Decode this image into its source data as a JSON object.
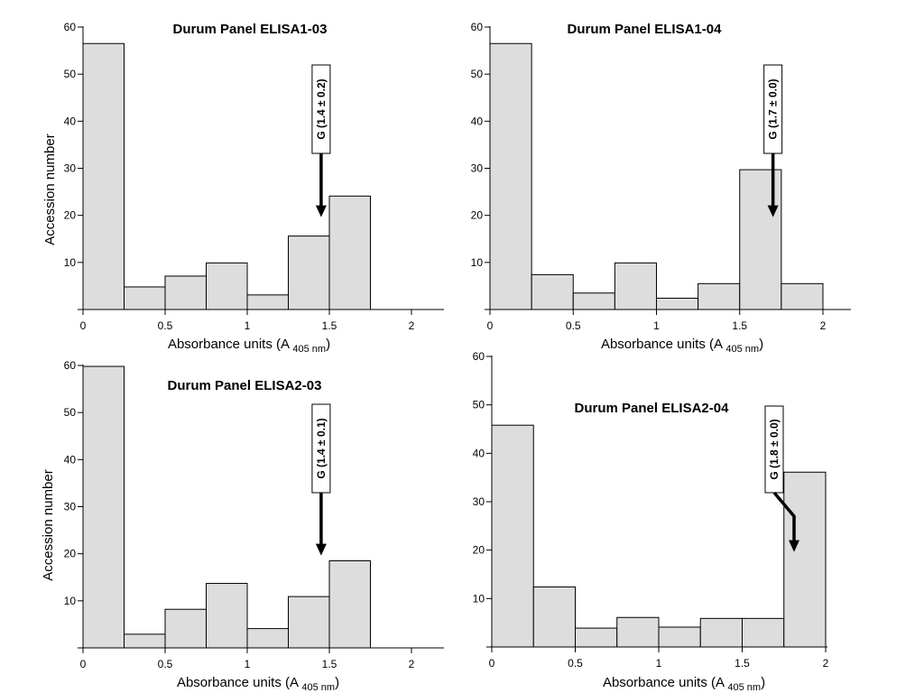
{
  "chart_data": [
    {
      "type": "bar",
      "title": "Durum Panel ELISA1-03",
      "xlabel": "Absorbance units (A",
      "xlabel_sub": "405 nm",
      "xlabel_close": ")",
      "ylabel": "Accession number",
      "bin_edges": [
        0,
        0.25,
        0.5,
        0.75,
        1,
        1.25,
        1.5,
        1.75
      ],
      "values": [
        56.5,
        4.8,
        7.1,
        9.9,
        3.1,
        15.6,
        24.1
      ],
      "xlim": [
        0,
        2.2
      ],
      "ylim": [
        0,
        60
      ],
      "xticks": [
        0,
        0.5,
        1,
        1.5,
        2
      ],
      "xtick_labels": [
        "0",
        "0.5",
        "1",
        "1.5",
        "2"
      ],
      "yticks": [
        10,
        20,
        30,
        40,
        50,
        60
      ],
      "ytick_labels": [
        "10",
        "20",
        "30",
        "40",
        "50",
        "60"
      ],
      "annotation": {
        "text": "G (1.4 ± 0.2)",
        "x": 1.45,
        "arrow_y": 20,
        "arrow_type": "straight"
      }
    },
    {
      "type": "bar",
      "title": "Durum Panel ELISA1-04",
      "xlabel": "Absorbance units (A",
      "xlabel_sub": "405 nm",
      "xlabel_close": ")",
      "ylabel": "",
      "bin_edges": [
        0,
        0.25,
        0.5,
        0.75,
        1,
        1.25,
        1.5,
        1.75,
        2
      ],
      "values": [
        56.5,
        7.4,
        3.5,
        9.9,
        2.4,
        5.5,
        29.7,
        5.5
      ],
      "xlim": [
        0,
        2.2
      ],
      "ylim": [
        0,
        60
      ],
      "xticks": [
        0,
        0.5,
        1,
        1.5,
        2
      ],
      "xtick_labels": [
        "0",
        "0.5",
        "1",
        "1.5",
        "2"
      ],
      "yticks": [
        10,
        20,
        30,
        40,
        50,
        60
      ],
      "ytick_labels": [
        "10",
        "20",
        "30",
        "40",
        "50",
        "60"
      ],
      "annotation": {
        "text": "G (1.7 ± 0.0)",
        "x": 1.7,
        "arrow_y": 20,
        "arrow_type": "straight"
      }
    },
    {
      "type": "bar",
      "title": "Durum Panel ELISA2-03",
      "xlabel": "Absorbance units (A",
      "xlabel_sub": "405 nm",
      "xlabel_close": ")",
      "ylabel": "Accession number",
      "bin_edges": [
        0,
        0.25,
        0.5,
        0.75,
        1,
        1.25,
        1.5,
        1.75
      ],
      "values": [
        59.8,
        2.9,
        8.2,
        13.7,
        4.1,
        10.9,
        18.5
      ],
      "xlim": [
        0,
        2.2
      ],
      "ylim": [
        0,
        60
      ],
      "xticks": [
        0,
        0.5,
        1,
        1.5,
        2
      ],
      "xtick_labels": [
        "0",
        "0.5",
        "1",
        "1.5",
        "2"
      ],
      "yticks": [
        10,
        20,
        30,
        40,
        50,
        60
      ],
      "ytick_labels": [
        "10",
        "20",
        "30",
        "40",
        "50",
        "60"
      ],
      "annotation": {
        "text": "G (1.4 ± 0.1)",
        "x": 1.45,
        "arrow_y": 20,
        "arrow_type": "straight"
      }
    },
    {
      "type": "bar",
      "title": "Durum Panel ELISA2-04",
      "xlabel": "Absorbance units (A",
      "xlabel_sub": "405 nm",
      "xlabel_close": ")",
      "ylabel": "",
      "bin_edges": [
        0,
        0.25,
        0.5,
        0.75,
        1,
        1.25,
        1.5,
        1.75,
        2
      ],
      "values": [
        45.8,
        12.4,
        3.9,
        6.1,
        4.1,
        5.9,
        5.9,
        36.1
      ],
      "xlim": [
        0,
        2
      ],
      "ylim": [
        0,
        60
      ],
      "xticks": [
        0,
        0.5,
        1,
        1.5,
        2
      ],
      "xtick_labels": [
        "0",
        "0.5",
        "1",
        "1.5",
        "2"
      ],
      "yticks": [
        10,
        20,
        30,
        40,
        50,
        60
      ],
      "ytick_labels": [
        "10",
        "20",
        "30",
        "40",
        "50",
        "60"
      ],
      "annotation": {
        "text": "G (1.8 ± 0.0)",
        "x": 1.8,
        "arrow_y": 20,
        "arrow_type": "bent"
      }
    }
  ]
}
